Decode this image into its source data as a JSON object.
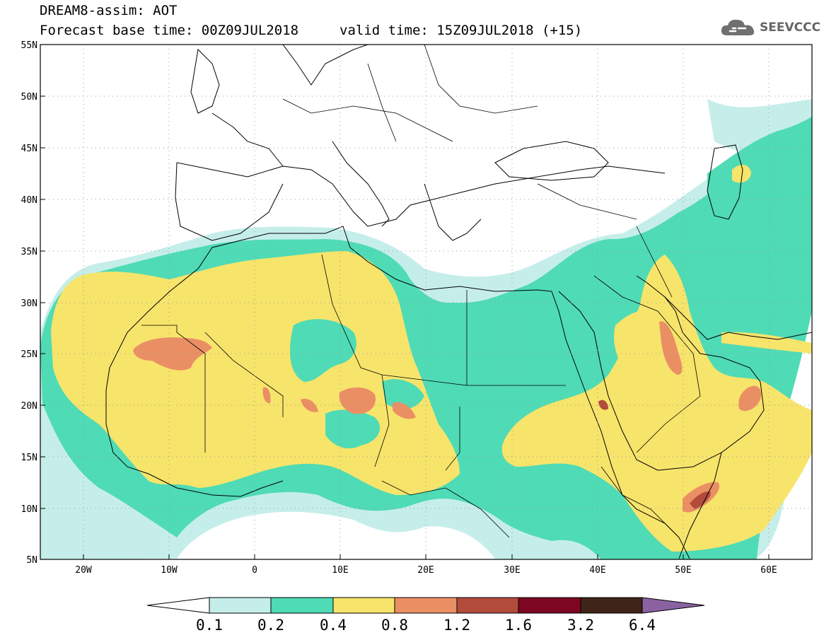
{
  "header": {
    "title": "DREAM8-assim: AOT",
    "base_time": "Forecast base time: 00Z09JUL2018",
    "valid_time": "valid time: 15Z09JUL2018 (+15)"
  },
  "logo": {
    "text": "SEEVCCC",
    "icon": "cloud-icon"
  },
  "map": {
    "region": "Northern Africa, Europe and Middle East",
    "lon_range": [
      -25,
      65
    ],
    "lat_range": [
      5,
      55
    ],
    "lat_ticks": [
      "55N",
      "50N",
      "45N",
      "40N",
      "35N",
      "30N",
      "25N",
      "20N",
      "15N",
      "10N",
      "5N"
    ],
    "lon_ticks": [
      "20W",
      "10W",
      "0",
      "10E",
      "20E",
      "30E",
      "40E",
      "50E",
      "60E"
    ],
    "grid": "dotted"
  },
  "colorbar": {
    "labels": [
      "0.1",
      "0.2",
      "0.4",
      "0.8",
      "1.2",
      "1.6",
      "3.2",
      "6.4"
    ],
    "colors": [
      "#ffffff",
      "#c5eeea",
      "#4fdbb5",
      "#f7e46b",
      "#ea8f64",
      "#b34b3b",
      "#7d0722",
      "#3e2518",
      "#8a62a2"
    ]
  }
}
